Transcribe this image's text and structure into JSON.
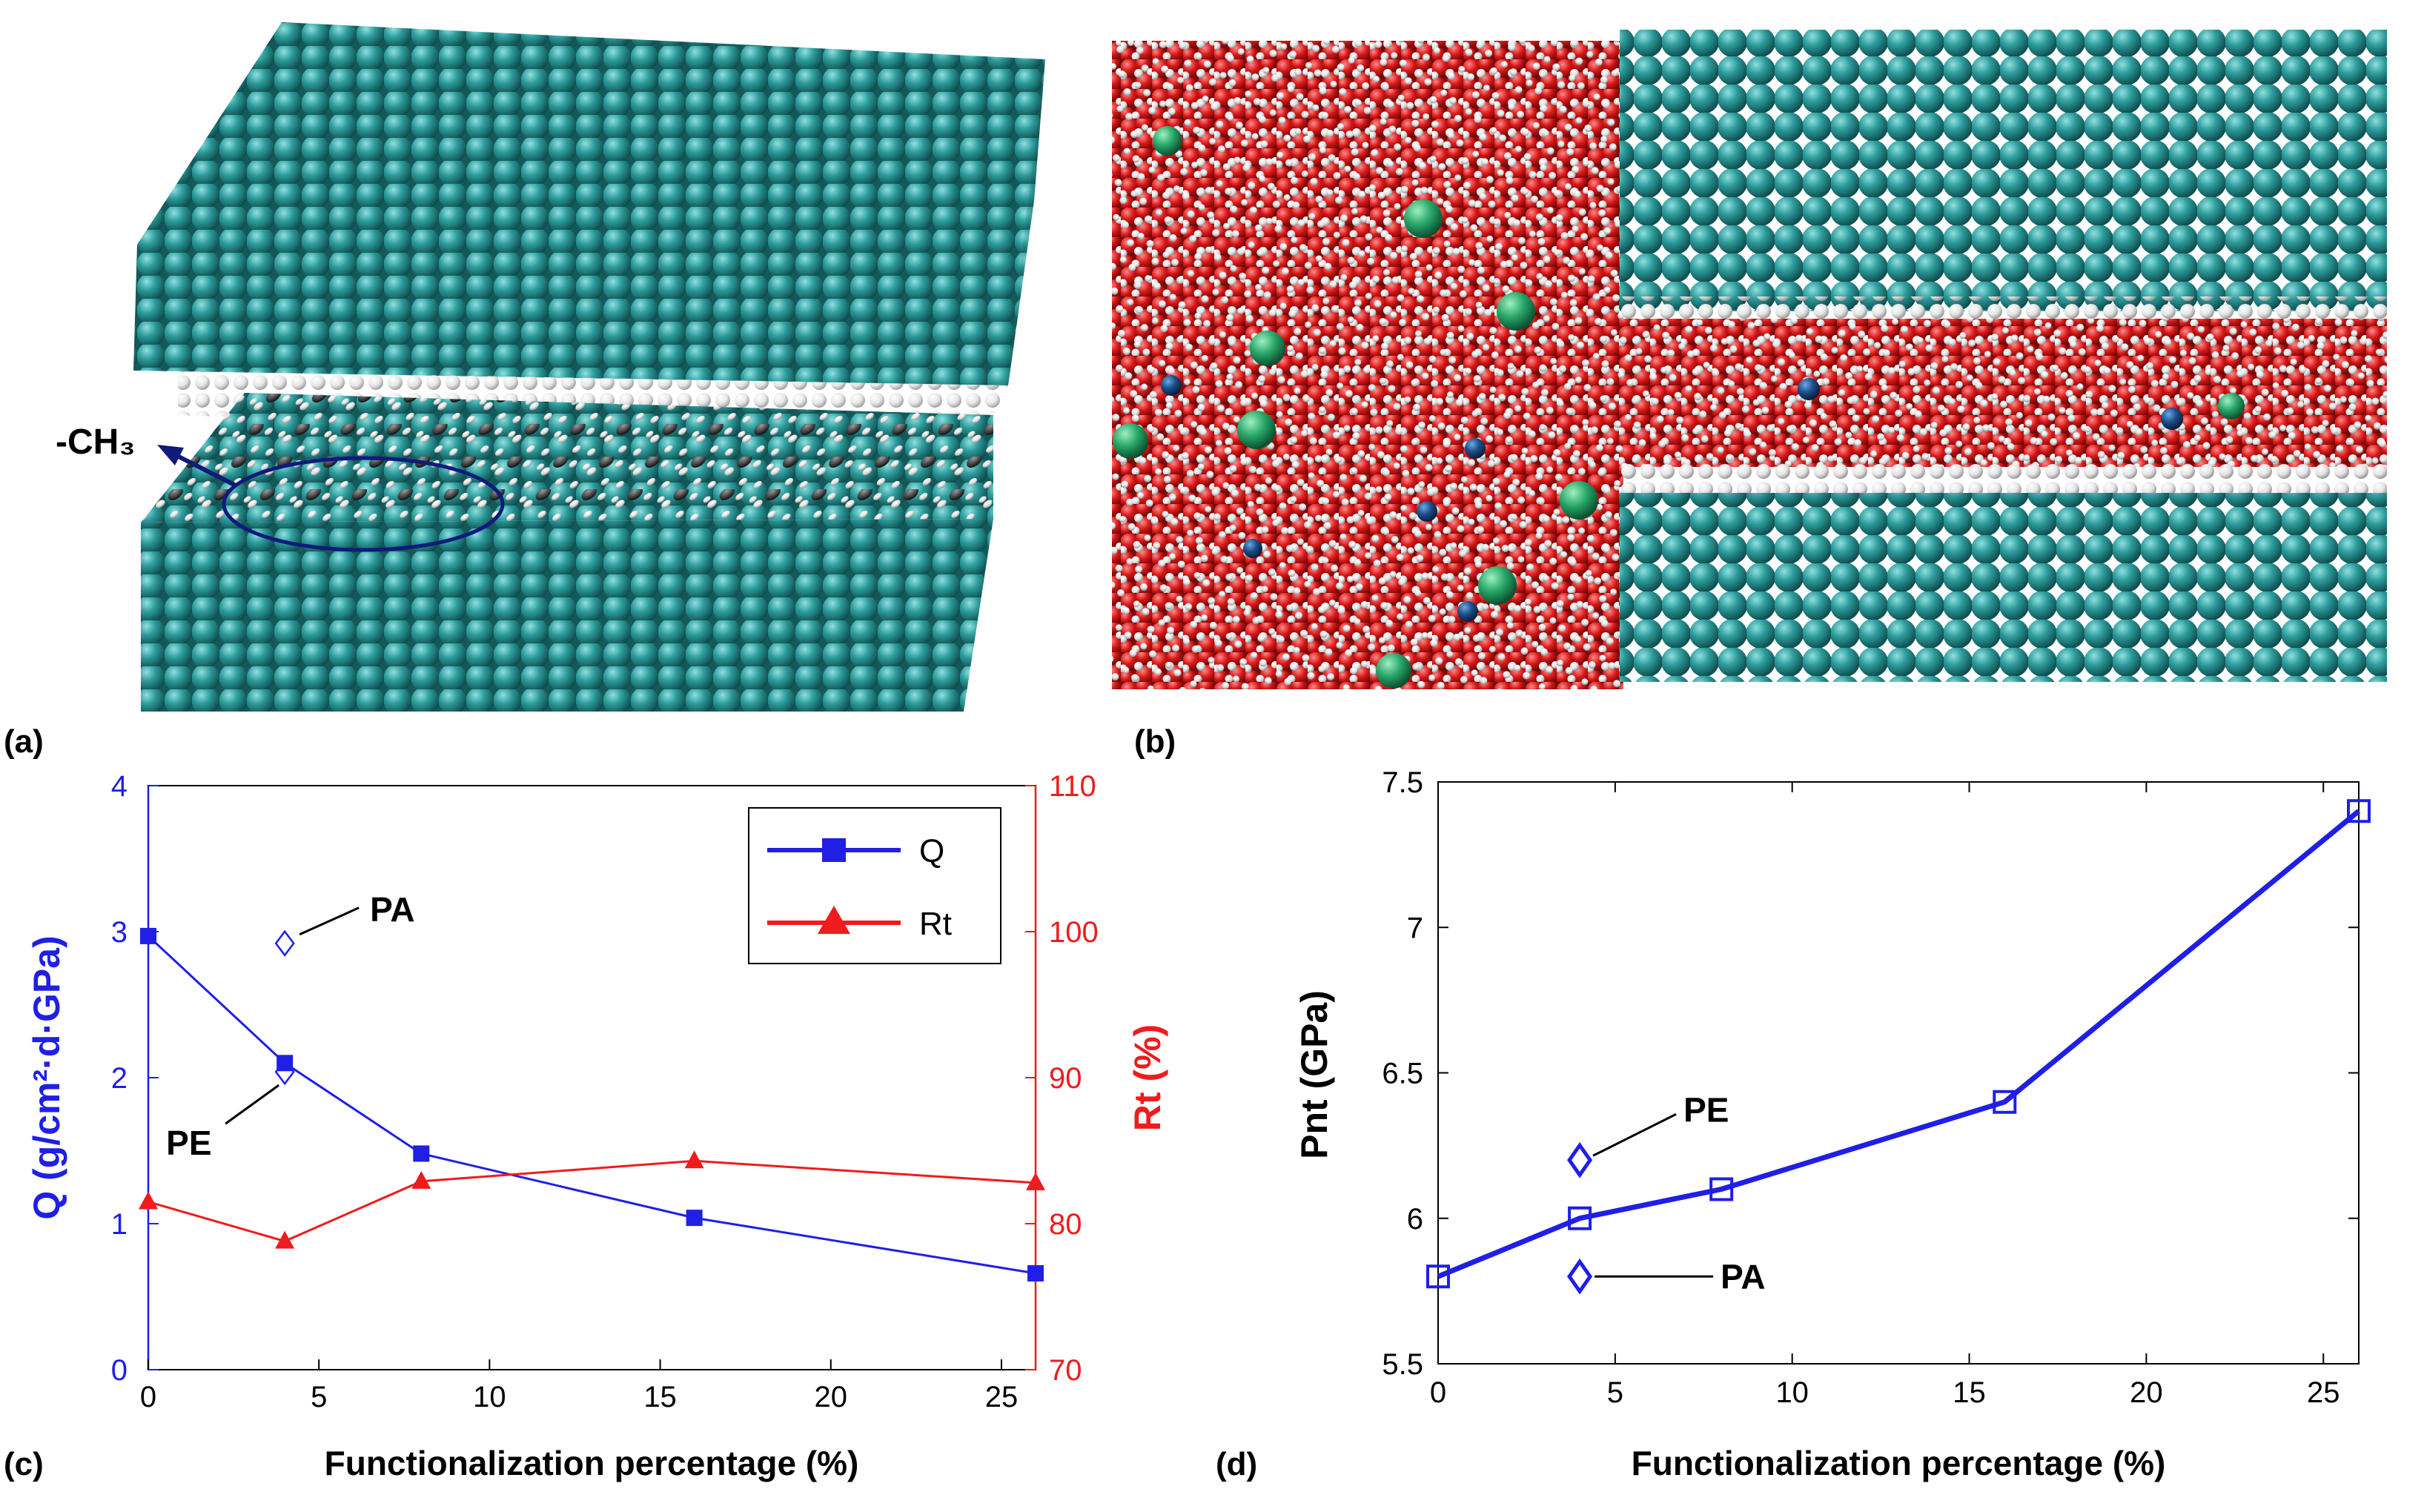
{
  "panel_labels": {
    "a": "(a)",
    "b": "(b)",
    "c": "(c)",
    "d": "(d)"
  },
  "panel_a": {
    "annotation": "-CH₃",
    "colors": {
      "graphene": "#2e9c9c",
      "carbon_group": "#505050",
      "hydrogen": "#e8e8e8",
      "marker": "#101a7a"
    }
  },
  "panel_b": {
    "colors": {
      "water_oxygen": "#d81818",
      "water_hydrogen": "#eeeeee",
      "sodium": "#2aa86a",
      "chloride": "#1c4f8a",
      "graphene": "#2e9c9c"
    }
  },
  "chart_data": [
    {
      "panel": "c",
      "type": "line",
      "xlabel": "Functionalization percentage (%)",
      "ylabel_left": "Q (g/cm²·d·GPa)",
      "ylabel_right": "Rt (%)",
      "xlim": [
        0,
        26
      ],
      "ylim_left": [
        0,
        4
      ],
      "ylim_right": [
        70,
        110
      ],
      "xticks": [
        "0",
        "5",
        "10",
        "15",
        "20",
        "25"
      ],
      "yticks_left": [
        "0",
        "1",
        "2",
        "3",
        "4"
      ],
      "yticks_right": [
        "70",
        "80",
        "90",
        "100",
        "110"
      ],
      "legend_position": "top-right",
      "series": [
        {
          "name": "Q",
          "axis": "left",
          "color": "#1f1fe6",
          "marker": "square",
          "x": [
            0,
            4,
            8,
            16,
            26
          ],
          "y": [
            2.97,
            2.1,
            1.48,
            1.04,
            0.66
          ]
        },
        {
          "name": "Rt",
          "axis": "right",
          "color": "#ee1c1c",
          "marker": "triangle",
          "x": [
            0,
            4,
            8,
            16,
            26
          ],
          "y": [
            81.5,
            78.8,
            82.9,
            84.3,
            82.8
          ]
        }
      ],
      "points": [
        {
          "label": "PA",
          "x": 4,
          "y": 2.92,
          "marker": "diamond-open"
        },
        {
          "label": "PE",
          "x": 4,
          "y": 2.04,
          "marker": "diamond-open"
        }
      ],
      "grid": false
    },
    {
      "panel": "d",
      "type": "line",
      "xlabel": "Functionalization percentage (%)",
      "ylabel": "Pnt (GPa)",
      "xlim": [
        0,
        26
      ],
      "ylim": [
        5.5,
        7.5
      ],
      "xticks": [
        "0",
        "5",
        "10",
        "15",
        "20",
        "25"
      ],
      "yticks": [
        "5.5",
        "6",
        "6.5",
        "7",
        "7.5"
      ],
      "series": [
        {
          "color": "#1f1fe6",
          "marker": "square-open",
          "x": [
            0,
            4,
            8,
            16,
            26
          ],
          "y": [
            5.8,
            6.0,
            6.1,
            6.4,
            7.4
          ]
        }
      ],
      "points": [
        {
          "label": "PE",
          "x": 4,
          "y": 6.2,
          "marker": "diamond-open"
        },
        {
          "label": "PA",
          "x": 4,
          "y": 5.8,
          "marker": "diamond-open"
        }
      ],
      "grid": false
    }
  ]
}
